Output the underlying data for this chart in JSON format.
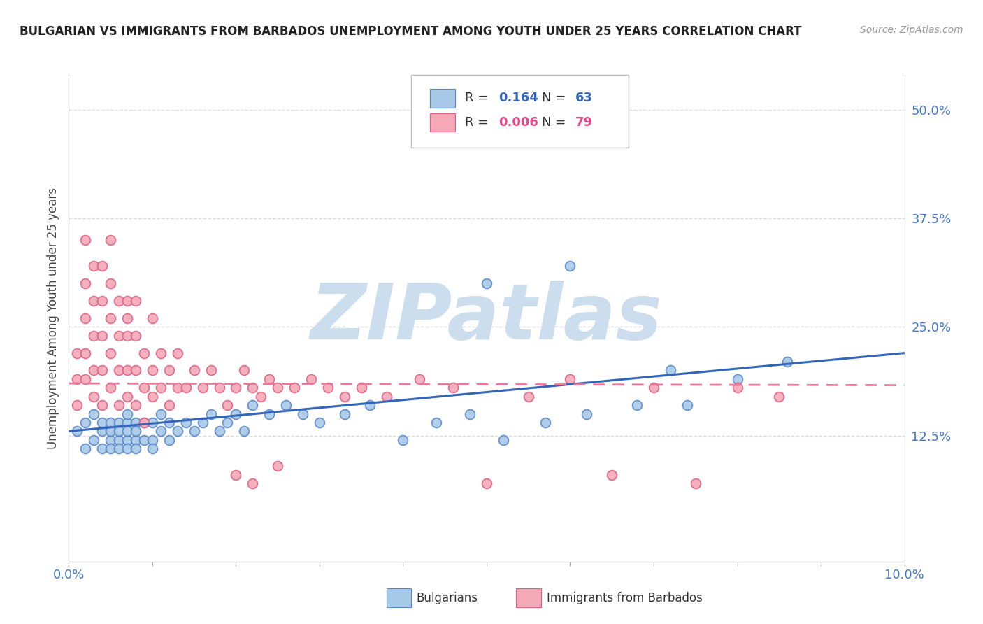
{
  "title": "BULGARIAN VS IMMIGRANTS FROM BARBADOS UNEMPLOYMENT AMONG YOUTH UNDER 25 YEARS CORRELATION CHART",
  "source": "Source: ZipAtlas.com",
  "ylabel": "Unemployment Among Youth under 25 years",
  "xlim": [
    0.0,
    0.1
  ],
  "ylim": [
    -0.02,
    0.54
  ],
  "xticks": [
    0.0,
    0.01,
    0.02,
    0.03,
    0.04,
    0.05,
    0.06,
    0.07,
    0.08,
    0.09,
    0.1
  ],
  "xtick_labels": [
    "0.0%",
    "",
    "",
    "",
    "",
    "",
    "",
    "",
    "",
    "",
    "10.0%"
  ],
  "ytick_right": [
    0.0,
    0.125,
    0.25,
    0.375,
    0.5
  ],
  "ytick_right_labels": [
    "",
    "12.5%",
    "25.0%",
    "37.5%",
    "50.0%"
  ],
  "blue_color": "#a8c8e8",
  "pink_color": "#f4a8b8",
  "blue_edge_color": "#5588cc",
  "pink_edge_color": "#e06080",
  "blue_line_color": "#3366bb",
  "pink_line_color": "#ee7799",
  "watermark": "ZIPatlas",
  "watermark_color": "#ccdded",
  "blue_x": [
    0.001,
    0.002,
    0.002,
    0.003,
    0.003,
    0.004,
    0.004,
    0.004,
    0.005,
    0.005,
    0.005,
    0.005,
    0.006,
    0.006,
    0.006,
    0.006,
    0.007,
    0.007,
    0.007,
    0.007,
    0.007,
    0.008,
    0.008,
    0.008,
    0.008,
    0.009,
    0.009,
    0.01,
    0.01,
    0.01,
    0.011,
    0.011,
    0.012,
    0.012,
    0.013,
    0.014,
    0.015,
    0.016,
    0.017,
    0.018,
    0.019,
    0.02,
    0.021,
    0.022,
    0.024,
    0.026,
    0.028,
    0.03,
    0.033,
    0.036,
    0.04,
    0.044,
    0.048,
    0.052,
    0.057,
    0.062,
    0.068,
    0.074,
    0.08,
    0.086,
    0.05,
    0.06,
    0.072
  ],
  "blue_y": [
    0.13,
    0.14,
    0.11,
    0.12,
    0.15,
    0.13,
    0.11,
    0.14,
    0.12,
    0.14,
    0.11,
    0.13,
    0.12,
    0.14,
    0.11,
    0.13,
    0.12,
    0.14,
    0.11,
    0.13,
    0.15,
    0.12,
    0.14,
    0.11,
    0.13,
    0.12,
    0.14,
    0.12,
    0.14,
    0.11,
    0.13,
    0.15,
    0.12,
    0.14,
    0.13,
    0.14,
    0.13,
    0.14,
    0.15,
    0.13,
    0.14,
    0.15,
    0.13,
    0.16,
    0.15,
    0.16,
    0.15,
    0.14,
    0.15,
    0.16,
    0.12,
    0.14,
    0.15,
    0.12,
    0.14,
    0.15,
    0.16,
    0.16,
    0.19,
    0.21,
    0.3,
    0.32,
    0.2
  ],
  "pink_x": [
    0.001,
    0.001,
    0.001,
    0.002,
    0.002,
    0.002,
    0.002,
    0.002,
    0.003,
    0.003,
    0.003,
    0.003,
    0.003,
    0.004,
    0.004,
    0.004,
    0.004,
    0.004,
    0.005,
    0.005,
    0.005,
    0.005,
    0.005,
    0.006,
    0.006,
    0.006,
    0.006,
    0.007,
    0.007,
    0.007,
    0.007,
    0.007,
    0.008,
    0.008,
    0.008,
    0.008,
    0.009,
    0.009,
    0.009,
    0.01,
    0.01,
    0.01,
    0.011,
    0.011,
    0.012,
    0.012,
    0.013,
    0.013,
    0.014,
    0.015,
    0.016,
    0.017,
    0.018,
    0.019,
    0.02,
    0.021,
    0.022,
    0.023,
    0.024,
    0.025,
    0.027,
    0.029,
    0.031,
    0.033,
    0.035,
    0.038,
    0.042,
    0.046,
    0.05,
    0.055,
    0.06,
    0.065,
    0.07,
    0.075,
    0.08,
    0.085,
    0.02,
    0.022,
    0.025
  ],
  "pink_y": [
    0.16,
    0.19,
    0.22,
    0.3,
    0.26,
    0.22,
    0.35,
    0.19,
    0.28,
    0.24,
    0.2,
    0.32,
    0.17,
    0.32,
    0.28,
    0.24,
    0.2,
    0.16,
    0.3,
    0.26,
    0.22,
    0.18,
    0.35,
    0.28,
    0.24,
    0.2,
    0.16,
    0.28,
    0.24,
    0.2,
    0.26,
    0.17,
    0.24,
    0.2,
    0.16,
    0.28,
    0.22,
    0.18,
    0.14,
    0.2,
    0.26,
    0.17,
    0.22,
    0.18,
    0.2,
    0.16,
    0.18,
    0.22,
    0.18,
    0.2,
    0.18,
    0.2,
    0.18,
    0.16,
    0.18,
    0.2,
    0.18,
    0.17,
    0.19,
    0.18,
    0.18,
    0.19,
    0.18,
    0.17,
    0.18,
    0.17,
    0.19,
    0.18,
    0.07,
    0.17,
    0.19,
    0.08,
    0.18,
    0.07,
    0.18,
    0.17,
    0.08,
    0.07,
    0.09
  ],
  "blue_trend_x": [
    0.0,
    0.1
  ],
  "blue_trend_y": [
    0.13,
    0.22
  ],
  "pink_trend_x": [
    0.0,
    0.1
  ],
  "pink_trend_y": [
    0.185,
    0.183
  ]
}
